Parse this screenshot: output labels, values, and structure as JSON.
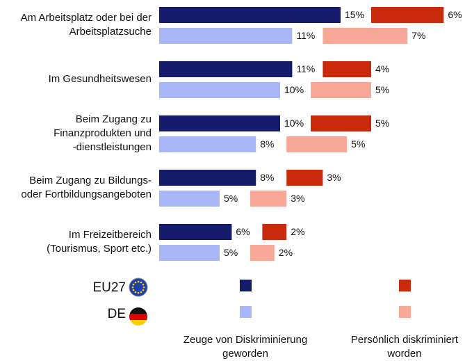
{
  "chart_data": {
    "type": "bar",
    "orientation": "horizontal",
    "categories": [
      "Am Arbeitsplatz oder bei der\nArbeitsplatzsuche",
      "Im Gesundheitswesen",
      "Beim Zugang zu\nFinanzprodukten und\n-dienstleistungen",
      "Beim Zugang zu Bildungs-\noder Fortbildungsangeboten",
      "Im Freizeitbereich\n(Tourismus, Sport etc.)"
    ],
    "groups": [
      {
        "name": "Zeuge von Diskriminierung\ngeworden",
        "series": [
          {
            "name": "EU27",
            "color": "#141c6b",
            "values": [
              15,
              11,
              10,
              8,
              6
            ],
            "value_labels": [
              "15%",
              "11%",
              "10%",
              "8%",
              "6%"
            ]
          },
          {
            "name": "DE",
            "color": "#a9b7f7",
            "values": [
              11,
              10,
              8,
              5,
              5
            ],
            "value_labels": [
              "11%",
              "10%",
              "8%",
              "5%",
              "5%"
            ]
          }
        ]
      },
      {
        "name": "Persönlich diskriminiert\nworden",
        "series": [
          {
            "name": "EU27",
            "color": "#c92a0c",
            "values": [
              6,
              4,
              5,
              3,
              2
            ],
            "value_labels": [
              "6%",
              "4%",
              "5%",
              "3%",
              "2%"
            ]
          },
          {
            "name": "DE",
            "color": "#f7a899",
            "values": [
              7,
              5,
              5,
              3,
              2
            ],
            "value_labels": [
              "7%",
              "5%",
              "5%",
              "3%",
              "2%"
            ]
          }
        ]
      }
    ]
  }
}
